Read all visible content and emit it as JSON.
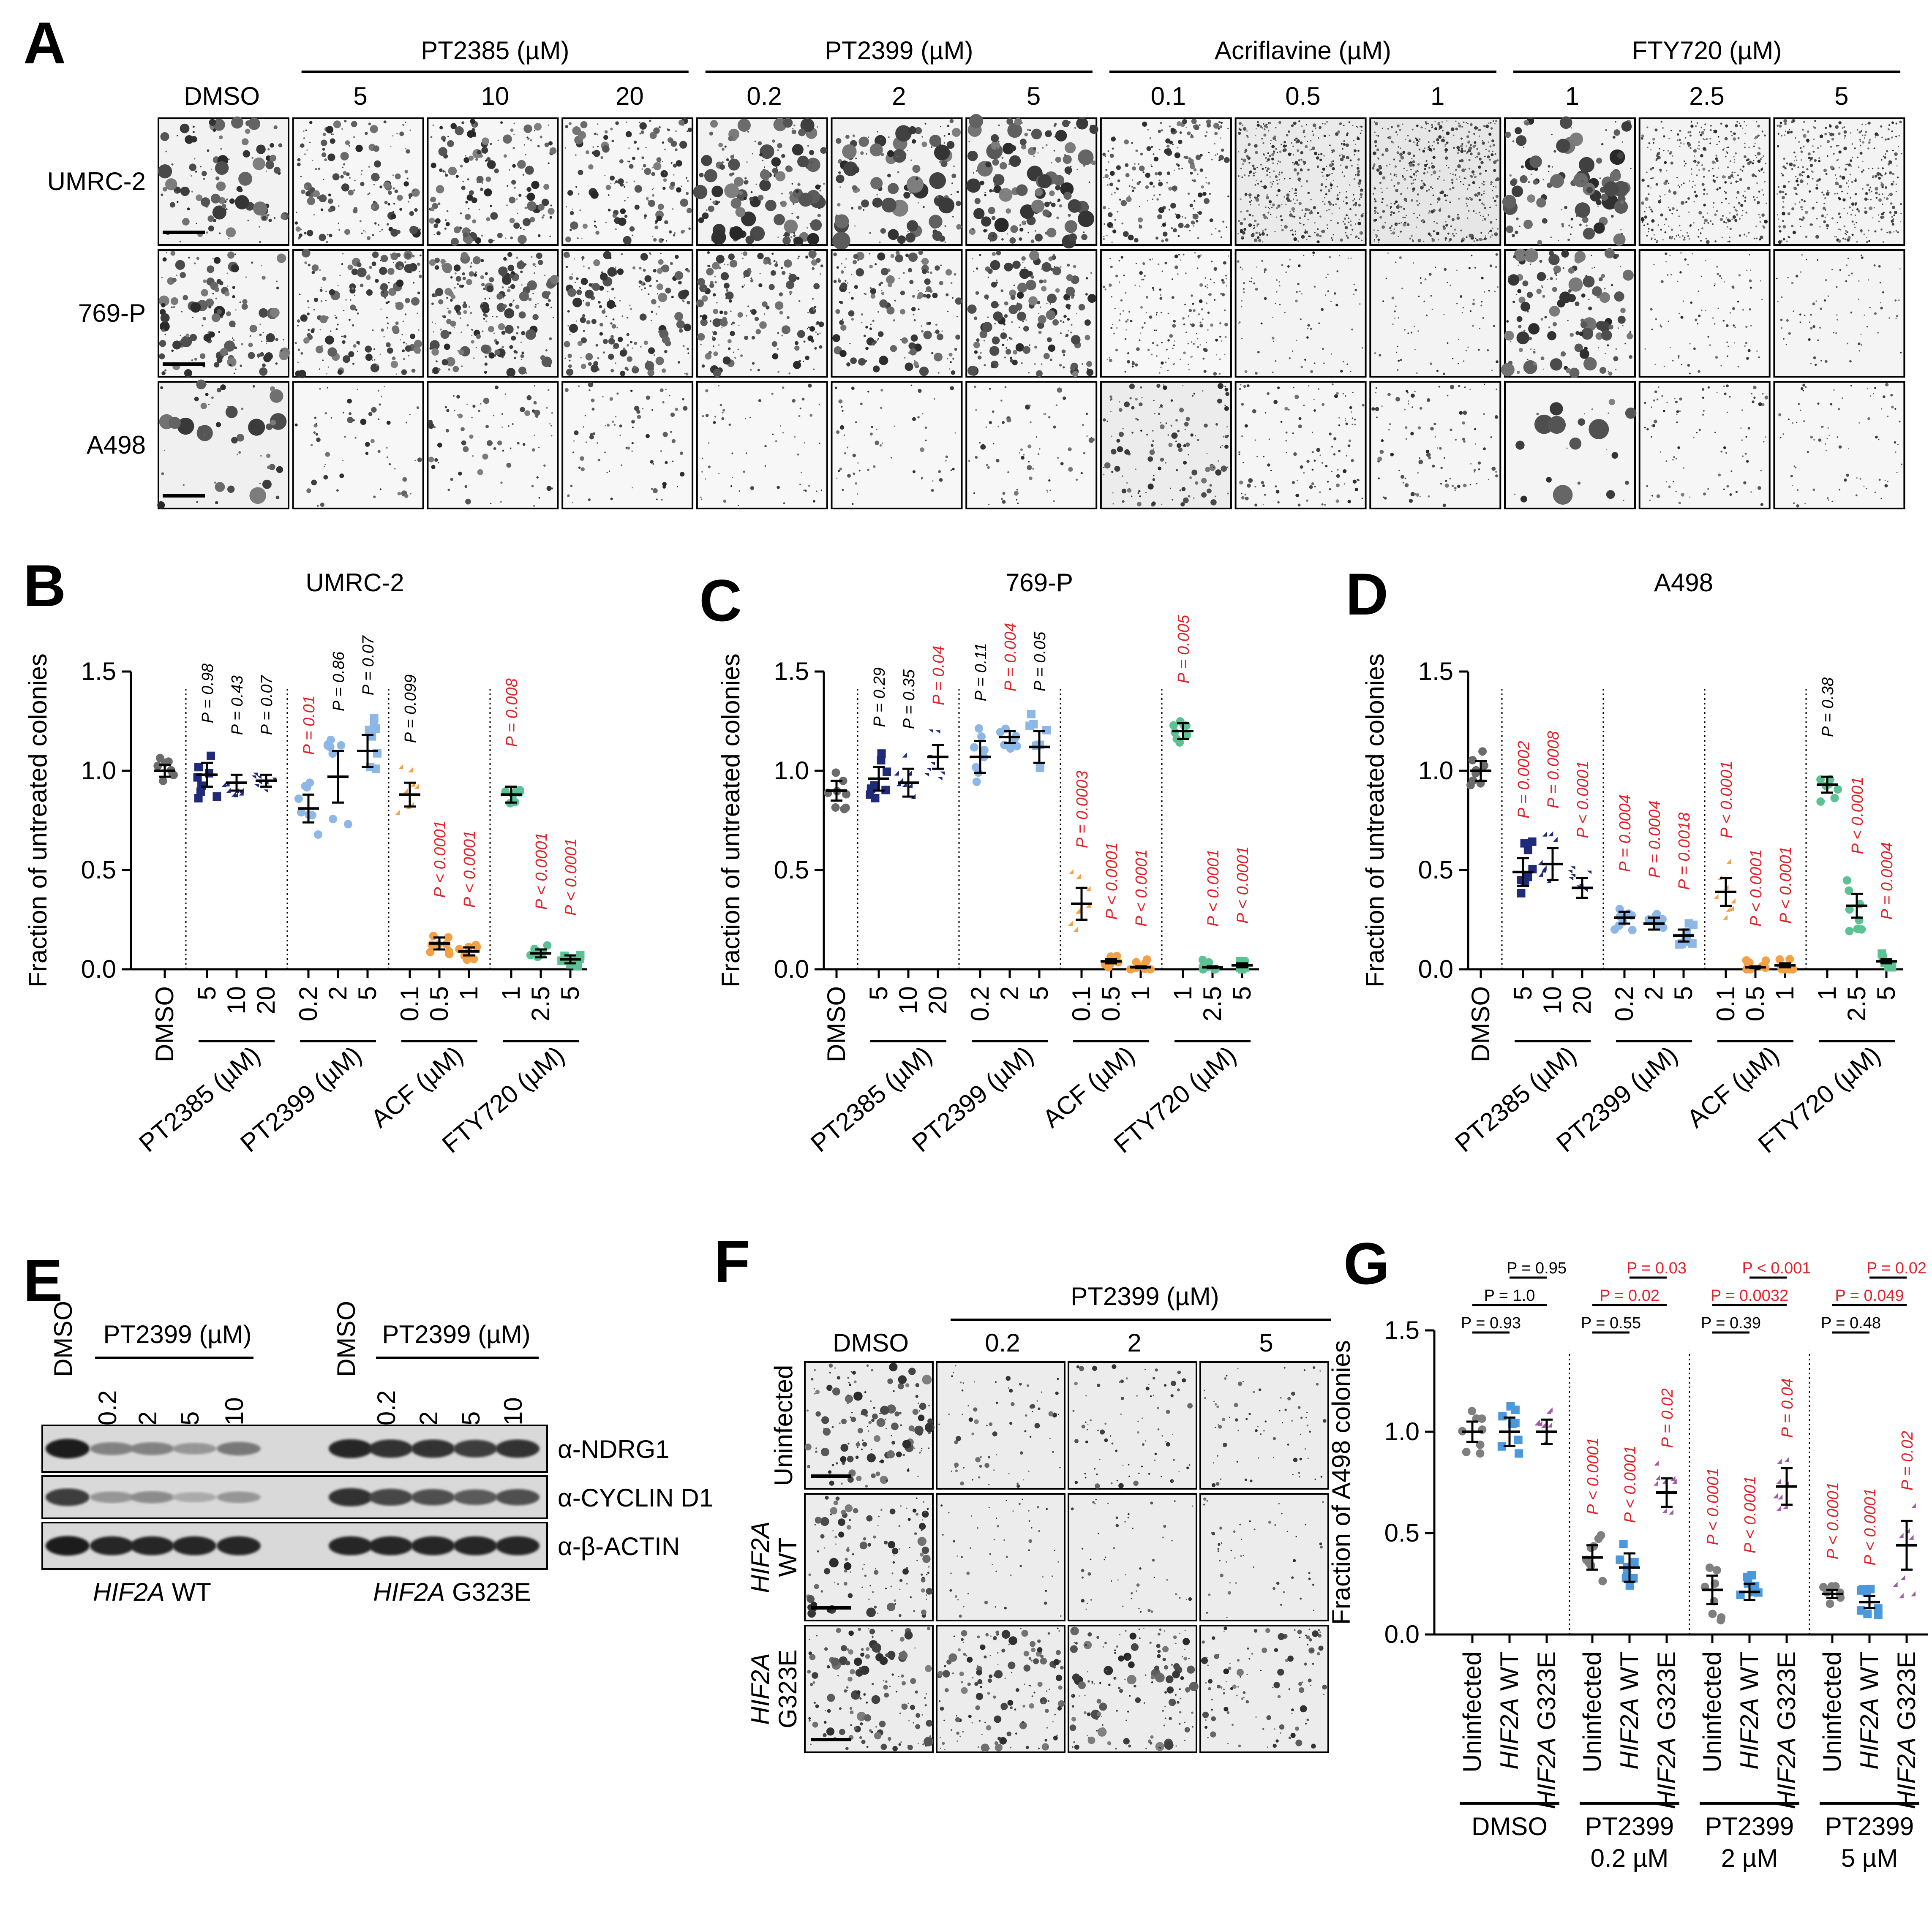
{
  "colors": {
    "red": "#e0242a",
    "black": "#000000",
    "dmso": "#6b6b6b",
    "pt2385": "#1f2a78",
    "pt2399": "#8db7e6",
    "acf": "#f4a044",
    "fty": "#5cc294",
    "gray": "#7f7f7f",
    "blue": "#4b98dc",
    "purple": "#a15ba8"
  },
  "panel_letters": {
    "A": "A",
    "B": "B",
    "C": "C",
    "D": "D",
    "E": "E",
    "F": "F",
    "G": "G"
  },
  "panel_a": {
    "dmso": "DMSO",
    "groups": [
      {
        "name": "PT2385 (µM)",
        "doses": [
          "5",
          "10",
          "20"
        ]
      },
      {
        "name": "PT2399 (µM)",
        "doses": [
          "0.2",
          "2",
          "5"
        ]
      },
      {
        "name": "Acriflavine (µM)",
        "doses": [
          "0.1",
          "0.5",
          "1"
        ]
      },
      {
        "name": "FTY720 (µM)",
        "doses": [
          "1",
          "2.5",
          "5"
        ]
      }
    ],
    "rows": [
      "UMRC-2",
      "769-P",
      "A498"
    ]
  },
  "chart_data": [
    {
      "panel": "B",
      "type": "scatter",
      "title": "UMRC-2",
      "ylabel": "Fraction of untreated colonies",
      "ylim": [
        0,
        1.5
      ],
      "yticks": [
        "0.0",
        "0.5",
        "1.0",
        "1.5"
      ],
      "categories": [
        "DMSO",
        "5",
        "10",
        "20",
        "0.2",
        "2",
        "5",
        "0.1",
        "0.5",
        "1",
        "1",
        "2.5",
        "5"
      ],
      "groups": [
        "PT2385 (µM)",
        "PT2399 (µM)",
        "ACF (µM)",
        "FTY720 (µM)"
      ],
      "means": [
        1.0,
        0.98,
        0.94,
        0.95,
        0.81,
        0.97,
        1.1,
        0.88,
        0.13,
        0.09,
        0.88,
        0.08,
        0.05
      ],
      "errors": [
        0.03,
        0.06,
        0.04,
        0.03,
        0.07,
        0.13,
        0.08,
        0.06,
        0.03,
        0.02,
        0.04,
        0.02,
        0.02
      ],
      "pvalues": [
        "",
        "P = 0.98",
        "P = 0.43",
        "P = 0.07",
        "P = 0.01",
        "P = 0.86",
        "P = 0.07",
        "P = 0.099",
        "P < 0.0001",
        "P < 0.0001",
        "P = 0.008",
        "P < 0.0001",
        "P < 0.0001"
      ],
      "p_red": [
        false,
        false,
        false,
        false,
        true,
        false,
        false,
        false,
        true,
        true,
        true,
        true,
        true
      ]
    },
    {
      "panel": "C",
      "type": "scatter",
      "title": "769-P",
      "ylabel": "Fraction of untreated colonies",
      "ylim": [
        0,
        1.5
      ],
      "yticks": [
        "0.0",
        "0.5",
        "1.0",
        "1.5"
      ],
      "categories": [
        "DMSO",
        "5",
        "10",
        "20",
        "0.2",
        "2",
        "5",
        "0.1",
        "0.5",
        "1",
        "1",
        "2.5",
        "5"
      ],
      "groups": [
        "PT2385 (µM)",
        "PT2399 (µM)",
        "ACF (µM)",
        "FTY720 (µM)"
      ],
      "means": [
        0.9,
        0.96,
        0.94,
        1.07,
        1.07,
        1.17,
        1.12,
        0.33,
        0.04,
        0.01,
        1.2,
        0.01,
        0.02
      ],
      "errors": [
        0.05,
        0.06,
        0.07,
        0.06,
        0.08,
        0.03,
        0.08,
        0.08,
        0.01,
        0.005,
        0.04,
        0.005,
        0.01
      ],
      "pvalues": [
        "",
        "P = 0.29",
        "P = 0.35",
        "P = 0.04",
        "P = 0.11",
        "P = 0.004",
        "P = 0.05",
        "P = 0.0003",
        "P < 0.0001",
        "P < 0.0001",
        "P = 0.005",
        "P < 0.0001",
        "P < 0.0001"
      ],
      "p_red": [
        false,
        false,
        false,
        true,
        false,
        true,
        false,
        true,
        true,
        true,
        true,
        true,
        true
      ]
    },
    {
      "panel": "D",
      "type": "scatter",
      "title": "A498",
      "ylabel": "Fraction of untreated colonies",
      "ylim": [
        0,
        1.5
      ],
      "yticks": [
        "0.0",
        "0.5",
        "1.0",
        "1.5"
      ],
      "categories": [
        "DMSO",
        "5",
        "10",
        "20",
        "0.2",
        "2",
        "5",
        "0.1",
        "0.5",
        "1",
        "1",
        "2.5",
        "5"
      ],
      "groups": [
        "PT2385 (µM)",
        "PT2399 (µM)",
        "ACF (µM)",
        "FTY720 (µM)"
      ],
      "means": [
        1.0,
        0.49,
        0.53,
        0.41,
        0.26,
        0.23,
        0.17,
        0.39,
        0.01,
        0.02,
        0.93,
        0.32,
        0.04
      ],
      "errors": [
        0.05,
        0.07,
        0.08,
        0.05,
        0.03,
        0.03,
        0.03,
        0.07,
        0.005,
        0.01,
        0.04,
        0.06,
        0.01
      ],
      "pvalues": [
        "",
        "P = 0.0002",
        "P = 0.0008",
        "P < 0.0001",
        "P = 0.0004",
        "P = 0.0004",
        "P = 0.0018",
        "P < 0.0001",
        "P < 0.0001",
        "P < 0.0001",
        "P = 0.38",
        "P < 0.0001",
        "P = 0.0004"
      ],
      "p_red": [
        false,
        true,
        true,
        true,
        true,
        true,
        true,
        true,
        true,
        true,
        false,
        true,
        true
      ]
    },
    {
      "panel": "G",
      "type": "scatter",
      "ylabel": "Fraction of A498 colonies",
      "ylim": [
        0,
        1.5
      ],
      "yticks": [
        "0.0",
        "0.5",
        "1.0",
        "1.5"
      ],
      "categories": [
        "Uninfected",
        "HIF2A WT",
        "HIF2A G323E",
        "Uninfected",
        "HIF2A WT",
        "HIF2A G323E",
        "Uninfected",
        "HIF2A WT",
        "HIF2A G323E",
        "Uninfected",
        "HIF2A WT",
        "HIF2A G323E"
      ],
      "groups": [
        [
          "DMSO",
          ""
        ],
        [
          "PT2399",
          "0.2 µM"
        ],
        [
          "PT2399",
          "2 µM"
        ],
        [
          "PT2399",
          "5 µM"
        ]
      ],
      "means": [
        1.0,
        1.0,
        1.0,
        0.38,
        0.33,
        0.7,
        0.22,
        0.21,
        0.73,
        0.2,
        0.16,
        0.44
      ],
      "errors": [
        0.05,
        0.07,
        0.06,
        0.06,
        0.07,
        0.07,
        0.07,
        0.04,
        0.09,
        0.02,
        0.03,
        0.12
      ],
      "pvalues": [
        "",
        "",
        "",
        "P < 0.0001",
        "P < 0.0001",
        "P = 0.02",
        "P < 0.0001",
        "P < 0.0001",
        "P = 0.04",
        "P < 0.0001",
        "P < 0.0001",
        "P = 0.02"
      ],
      "brackets": [
        {
          "text": "P = 0.93",
          "red": false
        },
        {
          "text": "P = 1.0",
          "red": false
        },
        {
          "text": "P = 0.95",
          "red": false
        },
        {
          "text": "P = 0.55",
          "red": false
        },
        {
          "text": "P = 0.02",
          "red": true
        },
        {
          "text": "P = 0.03",
          "red": true
        },
        {
          "text": "P = 0.39",
          "red": false
        },
        {
          "text": "P = 0.0032",
          "red": true
        },
        {
          "text": "P < 0.001",
          "red": true
        },
        {
          "text": "P = 0.48",
          "red": false
        },
        {
          "text": "P = 0.049",
          "red": true
        },
        {
          "text": "P = 0.02",
          "red": true
        }
      ]
    }
  ],
  "panel_e": {
    "left_dmso": "DMSO",
    "right_dmso": "DMSO",
    "drug": "PT2399 (µM)",
    "doses": [
      "0.2",
      "2",
      "5",
      "10"
    ],
    "bands": [
      "α-NDRG1",
      "α-CYCLIN D1",
      "α-β-ACTIN"
    ],
    "left_label_gene": "HIF2A",
    "left_label_rest": " WT",
    "right_label_gene": "HIF2A",
    "right_label_rest": " G323E"
  },
  "panel_f": {
    "drug": "PT2399 (µM)",
    "cols": [
      "DMSO",
      "0.2",
      "2",
      "5"
    ],
    "row1": "Uninfected",
    "row2_gene": "HIF2A",
    "row2_rest": "WT",
    "row3_gene": "HIF2A",
    "row3_rest": "G323E"
  }
}
